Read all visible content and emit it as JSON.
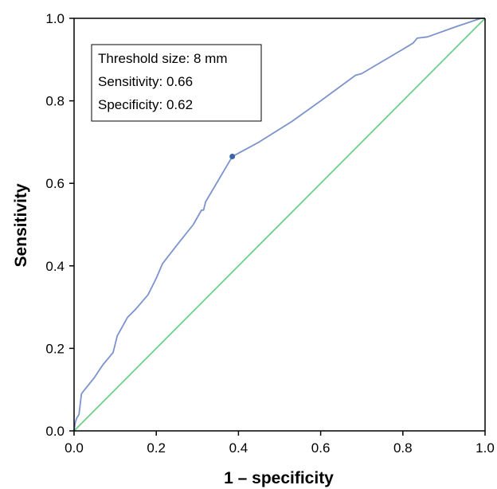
{
  "chart_data": {
    "type": "line",
    "title": "",
    "xlabel": "1 – specificity",
    "ylabel": "Sensitivity",
    "xlim": [
      0,
      1
    ],
    "ylim": [
      0,
      1
    ],
    "x_ticks": [
      "0.0",
      "0.2",
      "0.4",
      "0.6",
      "0.8",
      "1.0"
    ],
    "y_ticks": [
      "0.0",
      "0.2",
      "0.4",
      "0.6",
      "0.8",
      "1.0"
    ],
    "grid": false,
    "legend": "none",
    "colors": {
      "roc_curve": "#7c93cc",
      "reference_line": "#6dd08a",
      "marker": "#3e64a8",
      "axis": "#000000"
    },
    "series": [
      {
        "kind": "roc-curve",
        "points": [
          [
            0.0,
            0.0
          ],
          [
            0.003,
            0.02
          ],
          [
            0.006,
            0.03
          ],
          [
            0.012,
            0.04
          ],
          [
            0.018,
            0.09
          ],
          [
            0.03,
            0.105
          ],
          [
            0.05,
            0.13
          ],
          [
            0.07,
            0.16
          ],
          [
            0.095,
            0.19
          ],
          [
            0.105,
            0.23
          ],
          [
            0.13,
            0.275
          ],
          [
            0.15,
            0.295
          ],
          [
            0.18,
            0.33
          ],
          [
            0.2,
            0.37
          ],
          [
            0.215,
            0.405
          ],
          [
            0.25,
            0.45
          ],
          [
            0.29,
            0.5
          ],
          [
            0.31,
            0.535
          ],
          [
            0.315,
            0.535
          ],
          [
            0.32,
            0.555
          ],
          [
            0.385,
            0.665
          ],
          [
            0.45,
            0.7
          ],
          [
            0.53,
            0.75
          ],
          [
            0.6,
            0.8
          ],
          [
            0.685,
            0.862
          ],
          [
            0.7,
            0.866
          ],
          [
            0.8,
            0.925
          ],
          [
            0.825,
            0.94
          ],
          [
            0.835,
            0.952
          ],
          [
            0.86,
            0.955
          ],
          [
            0.93,
            0.98
          ],
          [
            0.99,
            1.0
          ],
          [
            1.0,
            1.0
          ]
        ]
      },
      {
        "kind": "reference-diagonal",
        "points": [
          [
            0,
            0
          ],
          [
            1,
            1
          ]
        ]
      }
    ],
    "marker_point": [
      0.385,
      0.665
    ],
    "annotation": {
      "lines": [
        "Threshold size: 8 mm",
        "Sensitivity: 0.66",
        "Specificity: 0.62"
      ],
      "placement": "top-left"
    }
  }
}
